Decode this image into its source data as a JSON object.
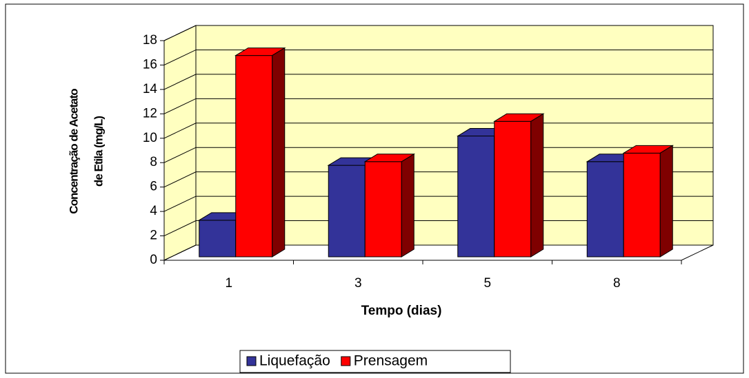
{
  "chart_data": {
    "type": "bar3d",
    "y_label": [
      "Concentração de Acetato",
      "de Etila (mg/L)"
    ],
    "x_label": "Tempo (dias)",
    "categories": [
      "1",
      "3",
      "5",
      "8"
    ],
    "series": [
      {
        "name": "Liquefação",
        "color": "#333399",
        "values": [
          3.0,
          7.5,
          9.9,
          7.8
        ]
      },
      {
        "name": "Prensagem",
        "color": "#ff0000",
        "values": [
          16.5,
          7.8,
          11.1,
          8.5
        ]
      }
    ],
    "ylim": [
      0,
      18
    ],
    "yticks": [
      0,
      2,
      4,
      6,
      8,
      10,
      12,
      14,
      16,
      18
    ],
    "grid": true,
    "legend": "bottom"
  }
}
